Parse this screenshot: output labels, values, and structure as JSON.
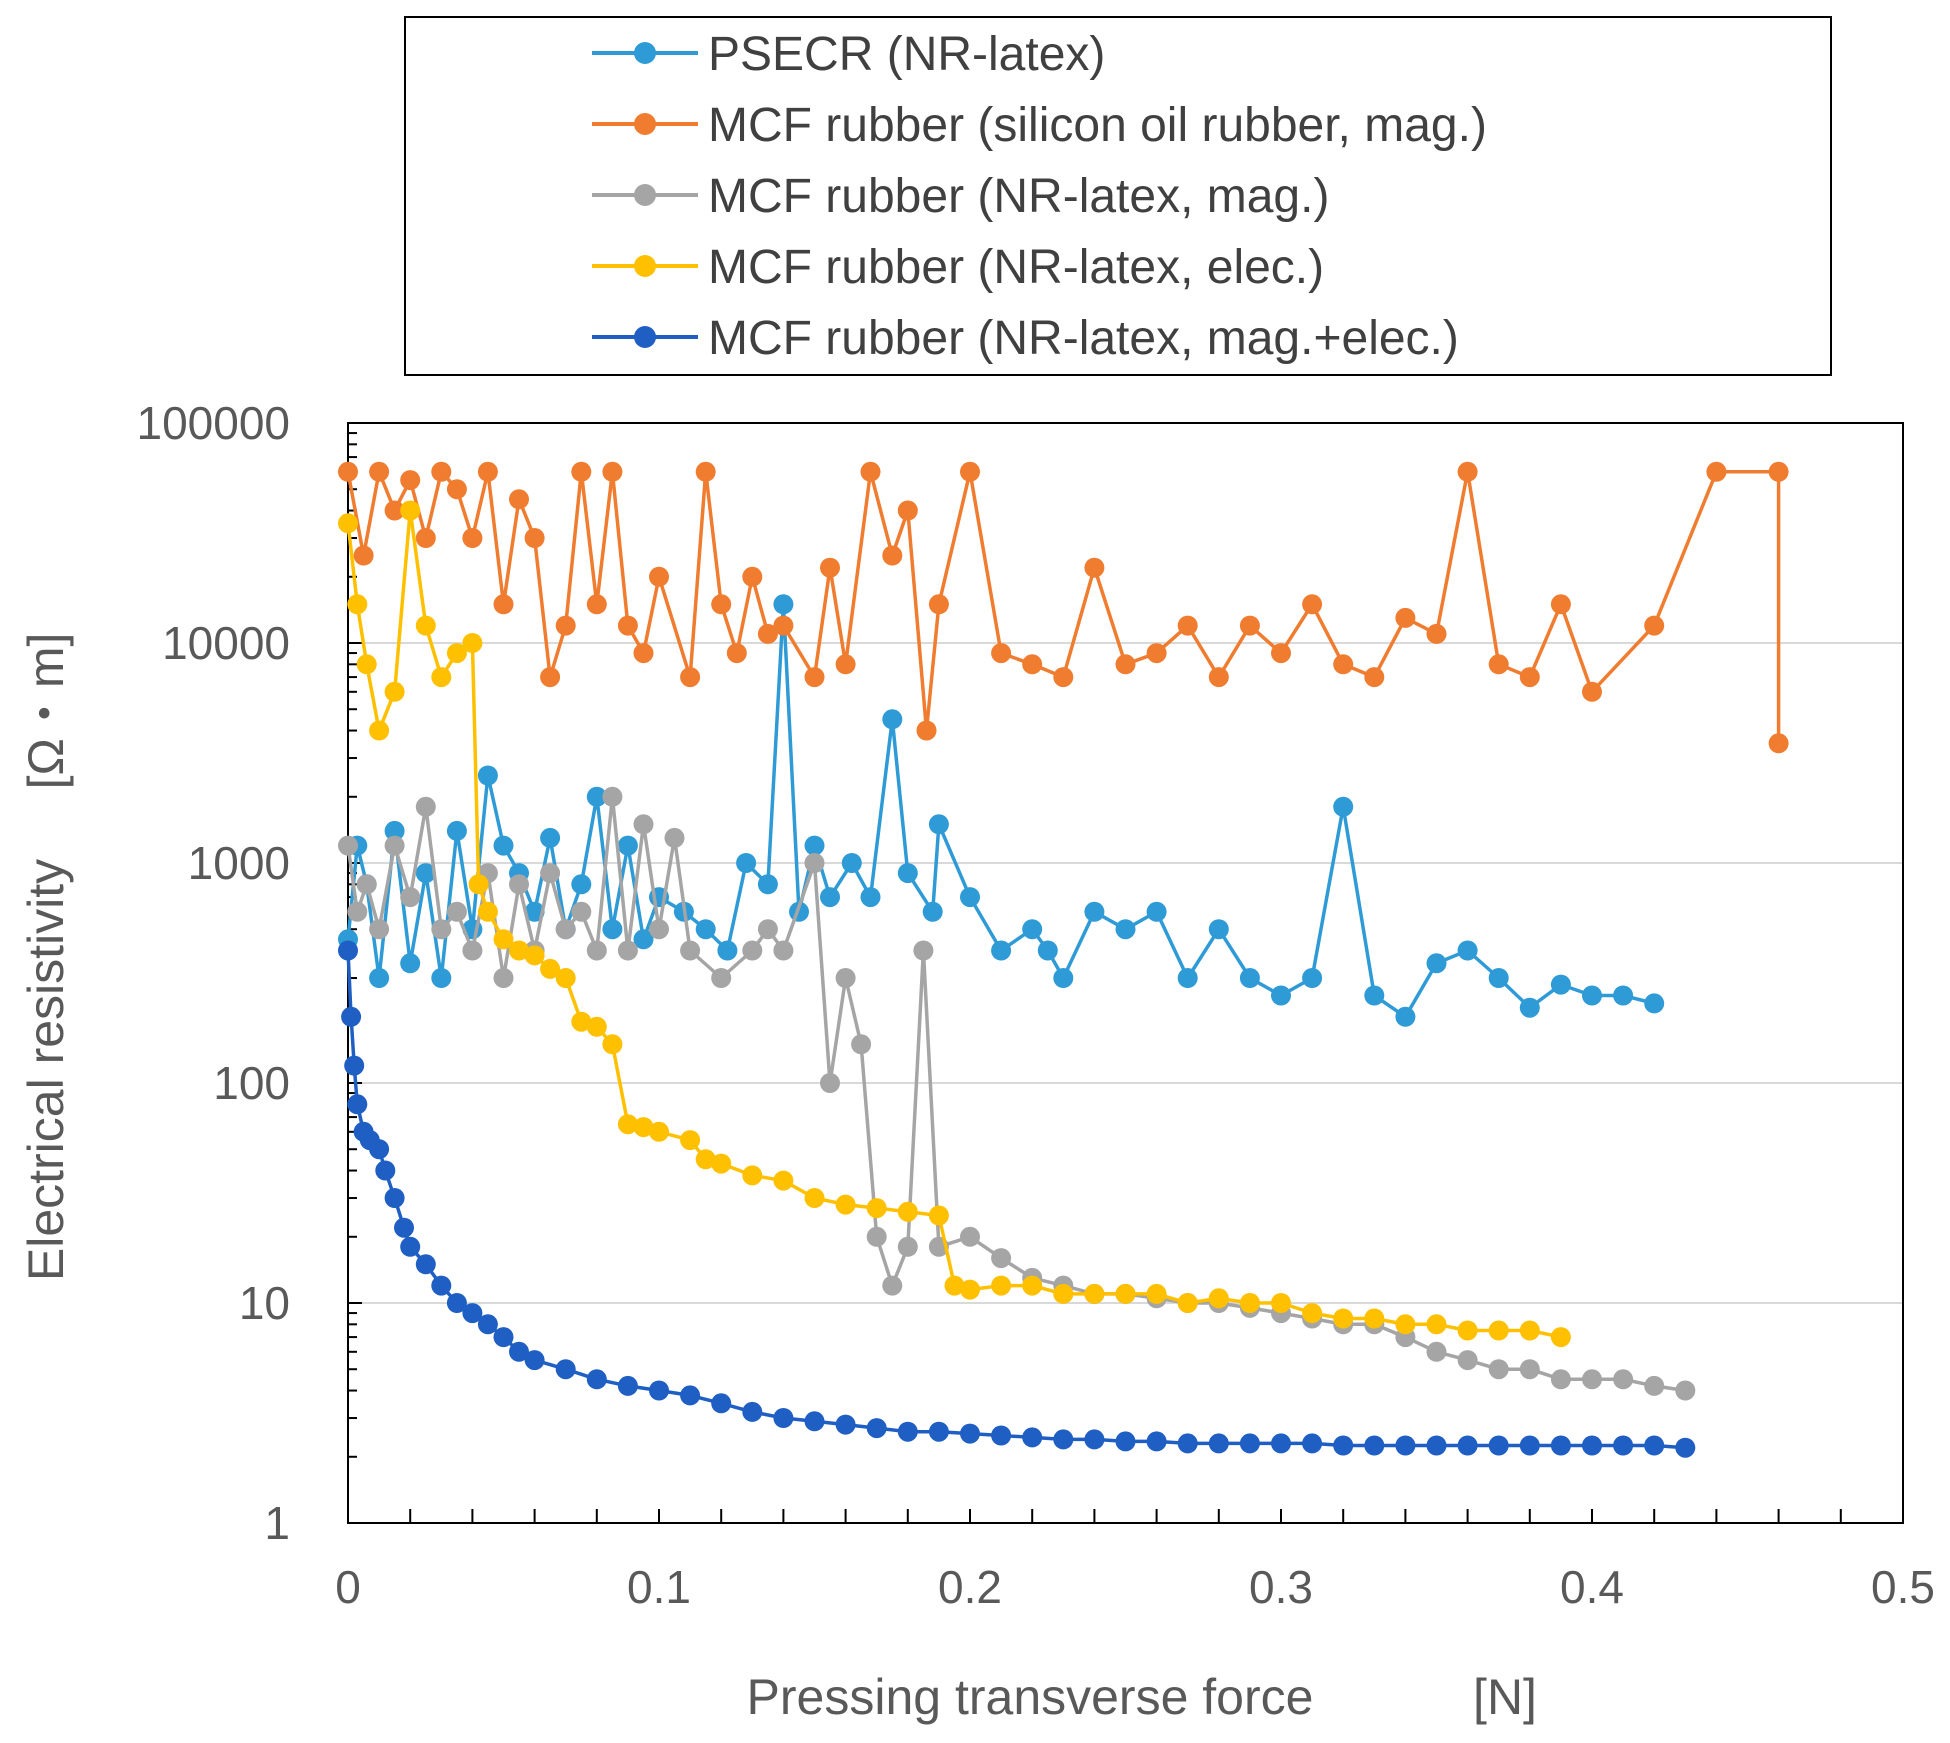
{
  "chart_data": {
    "type": "line",
    "title": "",
    "xlabel": "Pressing transverse force",
    "xunit": "[N]",
    "ylabel": "Electrical resistivity",
    "yunit": "[Ω・m]",
    "xlim": [
      0,
      0.5
    ],
    "ylim": [
      1,
      100000
    ],
    "yscale": "log",
    "grid": "horizontal major gridlines",
    "legend_position": "top (boxed, above plot)",
    "x_ticks": [
      "0",
      "0.1",
      "0.2",
      "0.3",
      "0.4",
      "0.5"
    ],
    "y_ticks": [
      "1",
      "10",
      "100",
      "1000",
      "10000",
      "100000"
    ],
    "series": [
      {
        "name": "PSECR (NR-latex)",
        "color": "#2E9BD6",
        "points": [
          [
            0,
            450
          ],
          [
            0.003,
            1200
          ],
          [
            0.006,
            800
          ],
          [
            0.01,
            300
          ],
          [
            0.015,
            1400
          ],
          [
            0.02,
            350
          ],
          [
            0.025,
            900
          ],
          [
            0.03,
            300
          ],
          [
            0.035,
            1400
          ],
          [
            0.04,
            500
          ],
          [
            0.045,
            2500
          ],
          [
            0.05,
            1200
          ],
          [
            0.055,
            900
          ],
          [
            0.06,
            600
          ],
          [
            0.065,
            1300
          ],
          [
            0.07,
            500
          ],
          [
            0.075,
            800
          ],
          [
            0.08,
            2000
          ],
          [
            0.085,
            500
          ],
          [
            0.09,
            1200
          ],
          [
            0.095,
            450
          ],
          [
            0.1,
            700
          ],
          [
            0.108,
            600
          ],
          [
            0.115,
            500
          ],
          [
            0.122,
            400
          ],
          [
            0.128,
            1000
          ],
          [
            0.135,
            800
          ],
          [
            0.14,
            15000
          ],
          [
            0.145,
            600
          ],
          [
            0.15,
            1200
          ],
          [
            0.155,
            700
          ],
          [
            0.162,
            1000
          ],
          [
            0.168,
            700
          ],
          [
            0.175,
            4500
          ],
          [
            0.18,
            900
          ],
          [
            0.188,
            600
          ],
          [
            0.19,
            1500
          ],
          [
            0.2,
            700
          ],
          [
            0.21,
            400
          ],
          [
            0.22,
            500
          ],
          [
            0.225,
            400
          ],
          [
            0.23,
            300
          ],
          [
            0.24,
            600
          ],
          [
            0.25,
            500
          ],
          [
            0.26,
            600
          ],
          [
            0.27,
            300
          ],
          [
            0.28,
            500
          ],
          [
            0.29,
            300
          ],
          [
            0.3,
            250
          ],
          [
            0.31,
            300
          ],
          [
            0.32,
            1800
          ],
          [
            0.33,
            250
          ],
          [
            0.34,
            200
          ],
          [
            0.35,
            350
          ],
          [
            0.36,
            400
          ],
          [
            0.37,
            300
          ],
          [
            0.38,
            220
          ],
          [
            0.39,
            280
          ],
          [
            0.4,
            250
          ],
          [
            0.41,
            250
          ],
          [
            0.42,
            230
          ]
        ]
      },
      {
        "name": "MCF rubber (silicon oil rubber, mag.)",
        "color": "#F07C30",
        "points": [
          [
            0,
            60000
          ],
          [
            0.005,
            25000
          ],
          [
            0.01,
            60000
          ],
          [
            0.015,
            40000
          ],
          [
            0.02,
            55000
          ],
          [
            0.025,
            30000
          ],
          [
            0.03,
            60000
          ],
          [
            0.035,
            50000
          ],
          [
            0.04,
            30000
          ],
          [
            0.045,
            60000
          ],
          [
            0.05,
            15000
          ],
          [
            0.055,
            45000
          ],
          [
            0.06,
            30000
          ],
          [
            0.065,
            7000
          ],
          [
            0.07,
            12000
          ],
          [
            0.075,
            60000
          ],
          [
            0.08,
            15000
          ],
          [
            0.085,
            60000
          ],
          [
            0.09,
            12000
          ],
          [
            0.095,
            9000
          ],
          [
            0.1,
            20000
          ],
          [
            0.11,
            7000
          ],
          [
            0.115,
            60000
          ],
          [
            0.12,
            15000
          ],
          [
            0.125,
            9000
          ],
          [
            0.13,
            20000
          ],
          [
            0.135,
            11000
          ],
          [
            0.14,
            12000
          ],
          [
            0.15,
            7000
          ],
          [
            0.155,
            22000
          ],
          [
            0.16,
            8000
          ],
          [
            0.168,
            60000
          ],
          [
            0.175,
            25000
          ],
          [
            0.18,
            40000
          ],
          [
            0.186,
            4000
          ],
          [
            0.19,
            15000
          ],
          [
            0.2,
            60000
          ],
          [
            0.21,
            9000
          ],
          [
            0.22,
            8000
          ],
          [
            0.23,
            7000
          ],
          [
            0.24,
            22000
          ],
          [
            0.25,
            8000
          ],
          [
            0.26,
            9000
          ],
          [
            0.27,
            12000
          ],
          [
            0.28,
            7000
          ],
          [
            0.29,
            12000
          ],
          [
            0.3,
            9000
          ],
          [
            0.31,
            15000
          ],
          [
            0.32,
            8000
          ],
          [
            0.33,
            7000
          ],
          [
            0.34,
            13000
          ],
          [
            0.35,
            11000
          ],
          [
            0.36,
            60000
          ],
          [
            0.37,
            8000
          ],
          [
            0.38,
            7000
          ],
          [
            0.39,
            15000
          ],
          [
            0.4,
            6000
          ],
          [
            0.42,
            12000
          ],
          [
            0.44,
            60000
          ],
          [
            0.46,
            60000
          ],
          [
            0.46,
            3500
          ]
        ]
      },
      {
        "name": "MCF rubber (NR-latex, mag.)",
        "color": "#A5A5A5",
        "points": [
          [
            0,
            1200
          ],
          [
            0.003,
            600
          ],
          [
            0.006,
            800
          ],
          [
            0.01,
            500
          ],
          [
            0.015,
            1200
          ],
          [
            0.02,
            700
          ],
          [
            0.025,
            1800
          ],
          [
            0.03,
            500
          ],
          [
            0.035,
            600
          ],
          [
            0.04,
            400
          ],
          [
            0.045,
            900
          ],
          [
            0.05,
            300
          ],
          [
            0.055,
            800
          ],
          [
            0.06,
            400
          ],
          [
            0.065,
            900
          ],
          [
            0.07,
            500
          ],
          [
            0.075,
            600
          ],
          [
            0.08,
            400
          ],
          [
            0.085,
            2000
          ],
          [
            0.09,
            400
          ],
          [
            0.095,
            1500
          ],
          [
            0.1,
            500
          ],
          [
            0.105,
            1300
          ],
          [
            0.11,
            400
          ],
          [
            0.12,
            300
          ],
          [
            0.13,
            400
          ],
          [
            0.135,
            500
          ],
          [
            0.14,
            400
          ],
          [
            0.15,
            1000
          ],
          [
            0.155,
            100
          ],
          [
            0.16,
            300
          ],
          [
            0.165,
            150
          ],
          [
            0.17,
            20
          ],
          [
            0.175,
            12
          ],
          [
            0.18,
            18
          ],
          [
            0.185,
            400
          ],
          [
            0.19,
            18
          ],
          [
            0.2,
            20
          ],
          [
            0.21,
            16
          ],
          [
            0.22,
            13
          ],
          [
            0.23,
            12
          ],
          [
            0.24,
            11
          ],
          [
            0.25,
            11
          ],
          [
            0.26,
            10.5
          ],
          [
            0.27,
            10
          ],
          [
            0.28,
            10
          ],
          [
            0.29,
            9.5
          ],
          [
            0.3,
            9
          ],
          [
            0.31,
            8.5
          ],
          [
            0.32,
            8
          ],
          [
            0.33,
            8
          ],
          [
            0.34,
            7
          ],
          [
            0.35,
            6
          ],
          [
            0.36,
            5.5
          ],
          [
            0.37,
            5
          ],
          [
            0.38,
            5
          ],
          [
            0.39,
            4.5
          ],
          [
            0.4,
            4.5
          ],
          [
            0.41,
            4.5
          ],
          [
            0.42,
            4.2
          ],
          [
            0.43,
            4
          ]
        ]
      },
      {
        "name": "MCF rubber (NR-latex, elec.)",
        "color": "#FFC000",
        "points": [
          [
            0,
            35000
          ],
          [
            0.003,
            15000
          ],
          [
            0.006,
            8000
          ],
          [
            0.01,
            4000
          ],
          [
            0.015,
            6000
          ],
          [
            0.02,
            40000
          ],
          [
            0.025,
            12000
          ],
          [
            0.03,
            7000
          ],
          [
            0.035,
            9000
          ],
          [
            0.04,
            10000
          ],
          [
            0.042,
            800
          ],
          [
            0.045,
            600
          ],
          [
            0.05,
            450
          ],
          [
            0.055,
            400
          ],
          [
            0.06,
            380
          ],
          [
            0.065,
            330
          ],
          [
            0.07,
            300
          ],
          [
            0.075,
            190
          ],
          [
            0.08,
            180
          ],
          [
            0.085,
            150
          ],
          [
            0.09,
            65
          ],
          [
            0.095,
            63
          ],
          [
            0.1,
            60
          ],
          [
            0.11,
            55
          ],
          [
            0.115,
            45
          ],
          [
            0.12,
            43
          ],
          [
            0.13,
            38
          ],
          [
            0.14,
            36
          ],
          [
            0.15,
            30
          ],
          [
            0.16,
            28
          ],
          [
            0.17,
            27
          ],
          [
            0.18,
            26
          ],
          [
            0.19,
            25
          ],
          [
            0.195,
            12
          ],
          [
            0.2,
            11.5
          ],
          [
            0.21,
            12
          ],
          [
            0.22,
            12
          ],
          [
            0.23,
            11
          ],
          [
            0.24,
            11
          ],
          [
            0.25,
            11
          ],
          [
            0.26,
            11
          ],
          [
            0.27,
            10
          ],
          [
            0.28,
            10.5
          ],
          [
            0.29,
            10
          ],
          [
            0.3,
            10
          ],
          [
            0.31,
            9
          ],
          [
            0.32,
            8.5
          ],
          [
            0.33,
            8.5
          ],
          [
            0.34,
            8
          ],
          [
            0.35,
            8
          ],
          [
            0.36,
            7.5
          ],
          [
            0.37,
            7.5
          ],
          [
            0.38,
            7.5
          ],
          [
            0.39,
            7
          ]
        ]
      },
      {
        "name": "MCF rubber (NR-latex, mag.+elec.)",
        "color": "#1F5FC4",
        "points": [
          [
            0,
            400
          ],
          [
            0.001,
            200
          ],
          [
            0.002,
            120
          ],
          [
            0.003,
            80
          ],
          [
            0.005,
            60
          ],
          [
            0.007,
            55
          ],
          [
            0.01,
            50
          ],
          [
            0.012,
            40
          ],
          [
            0.015,
            30
          ],
          [
            0.018,
            22
          ],
          [
            0.02,
            18
          ],
          [
            0.025,
            15
          ],
          [
            0.03,
            12
          ],
          [
            0.035,
            10
          ],
          [
            0.04,
            9
          ],
          [
            0.045,
            8
          ],
          [
            0.05,
            7
          ],
          [
            0.055,
            6
          ],
          [
            0.06,
            5.5
          ],
          [
            0.07,
            5
          ],
          [
            0.08,
            4.5
          ],
          [
            0.09,
            4.2
          ],
          [
            0.1,
            4
          ],
          [
            0.11,
            3.8
          ],
          [
            0.12,
            3.5
          ],
          [
            0.13,
            3.2
          ],
          [
            0.14,
            3
          ],
          [
            0.15,
            2.9
          ],
          [
            0.16,
            2.8
          ],
          [
            0.17,
            2.7
          ],
          [
            0.18,
            2.6
          ],
          [
            0.19,
            2.6
          ],
          [
            0.2,
            2.55
          ],
          [
            0.21,
            2.5
          ],
          [
            0.22,
            2.45
          ],
          [
            0.23,
            2.4
          ],
          [
            0.24,
            2.4
          ],
          [
            0.25,
            2.35
          ],
          [
            0.26,
            2.35
          ],
          [
            0.27,
            2.3
          ],
          [
            0.28,
            2.3
          ],
          [
            0.29,
            2.3
          ],
          [
            0.3,
            2.3
          ],
          [
            0.31,
            2.3
          ],
          [
            0.32,
            2.25
          ],
          [
            0.33,
            2.25
          ],
          [
            0.34,
            2.25
          ],
          [
            0.35,
            2.25
          ],
          [
            0.36,
            2.25
          ],
          [
            0.37,
            2.25
          ],
          [
            0.38,
            2.25
          ],
          [
            0.39,
            2.25
          ],
          [
            0.4,
            2.25
          ],
          [
            0.41,
            2.25
          ],
          [
            0.42,
            2.25
          ],
          [
            0.43,
            2.2
          ]
        ]
      }
    ]
  }
}
